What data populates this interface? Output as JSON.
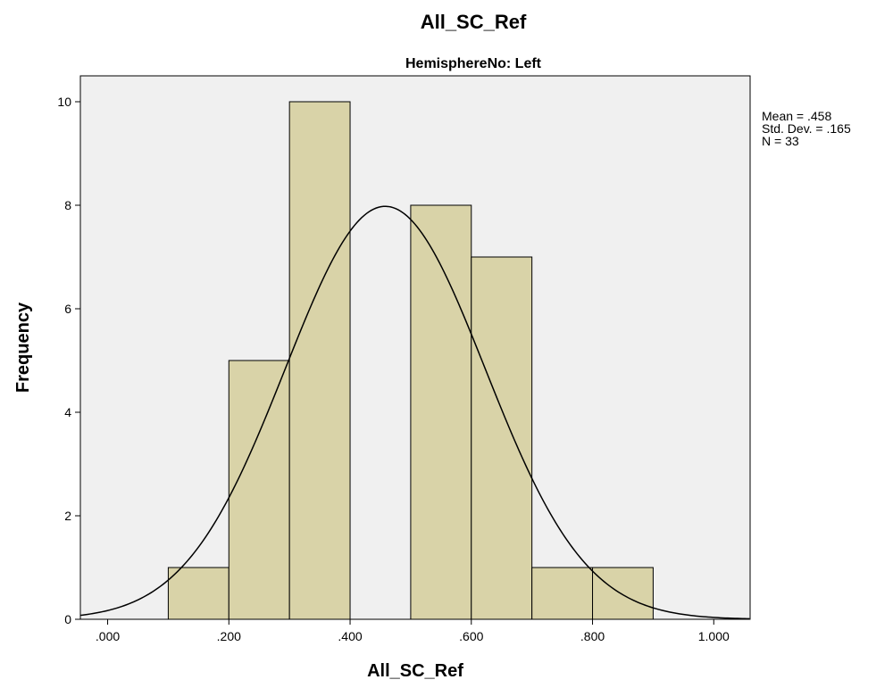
{
  "chart_data": {
    "type": "bar",
    "title": "All_SC_Ref",
    "subtitle": "HemisphereNo: Left",
    "xlabel": "All_SC_Ref",
    "ylabel": "Frequency",
    "xlim": [
      -0.045,
      1.06
    ],
    "ylim": [
      0,
      10.5
    ],
    "x_ticks": [
      0.0,
      0.2,
      0.4,
      0.6,
      0.8,
      1.0
    ],
    "x_tick_labels": [
      ".000",
      ".200",
      ".400",
      ".600",
      ".800",
      "1.000"
    ],
    "y_ticks": [
      0,
      2,
      4,
      6,
      8,
      10
    ],
    "y_tick_labels": [
      "0",
      "2",
      "4",
      "6",
      "8",
      "10"
    ],
    "bins": [
      {
        "from": 0.1,
        "to": 0.2,
        "count": 1
      },
      {
        "from": 0.2,
        "to": 0.3,
        "count": 5
      },
      {
        "from": 0.3,
        "to": 0.4,
        "count": 10
      },
      {
        "from": 0.4,
        "to": 0.5,
        "count": 0
      },
      {
        "from": 0.5,
        "to": 0.6,
        "count": 8
      },
      {
        "from": 0.6,
        "to": 0.7,
        "count": 7
      },
      {
        "from": 0.7,
        "to": 0.8,
        "count": 1
      },
      {
        "from": 0.8,
        "to": 0.9,
        "count": 1
      }
    ],
    "normal_curve": {
      "mean": 0.458,
      "std_dev": 0.165,
      "n": 33,
      "bin_width": 0.1
    },
    "stats_text": [
      "Mean = .458",
      "Std. Dev. = .165",
      "N = 33"
    ],
    "grid": false,
    "colors": {
      "bar_fill": "#d9d3a8",
      "bar_stroke": "#000000",
      "plot_bg": "#f0f0f0",
      "curve": "#000000"
    }
  }
}
